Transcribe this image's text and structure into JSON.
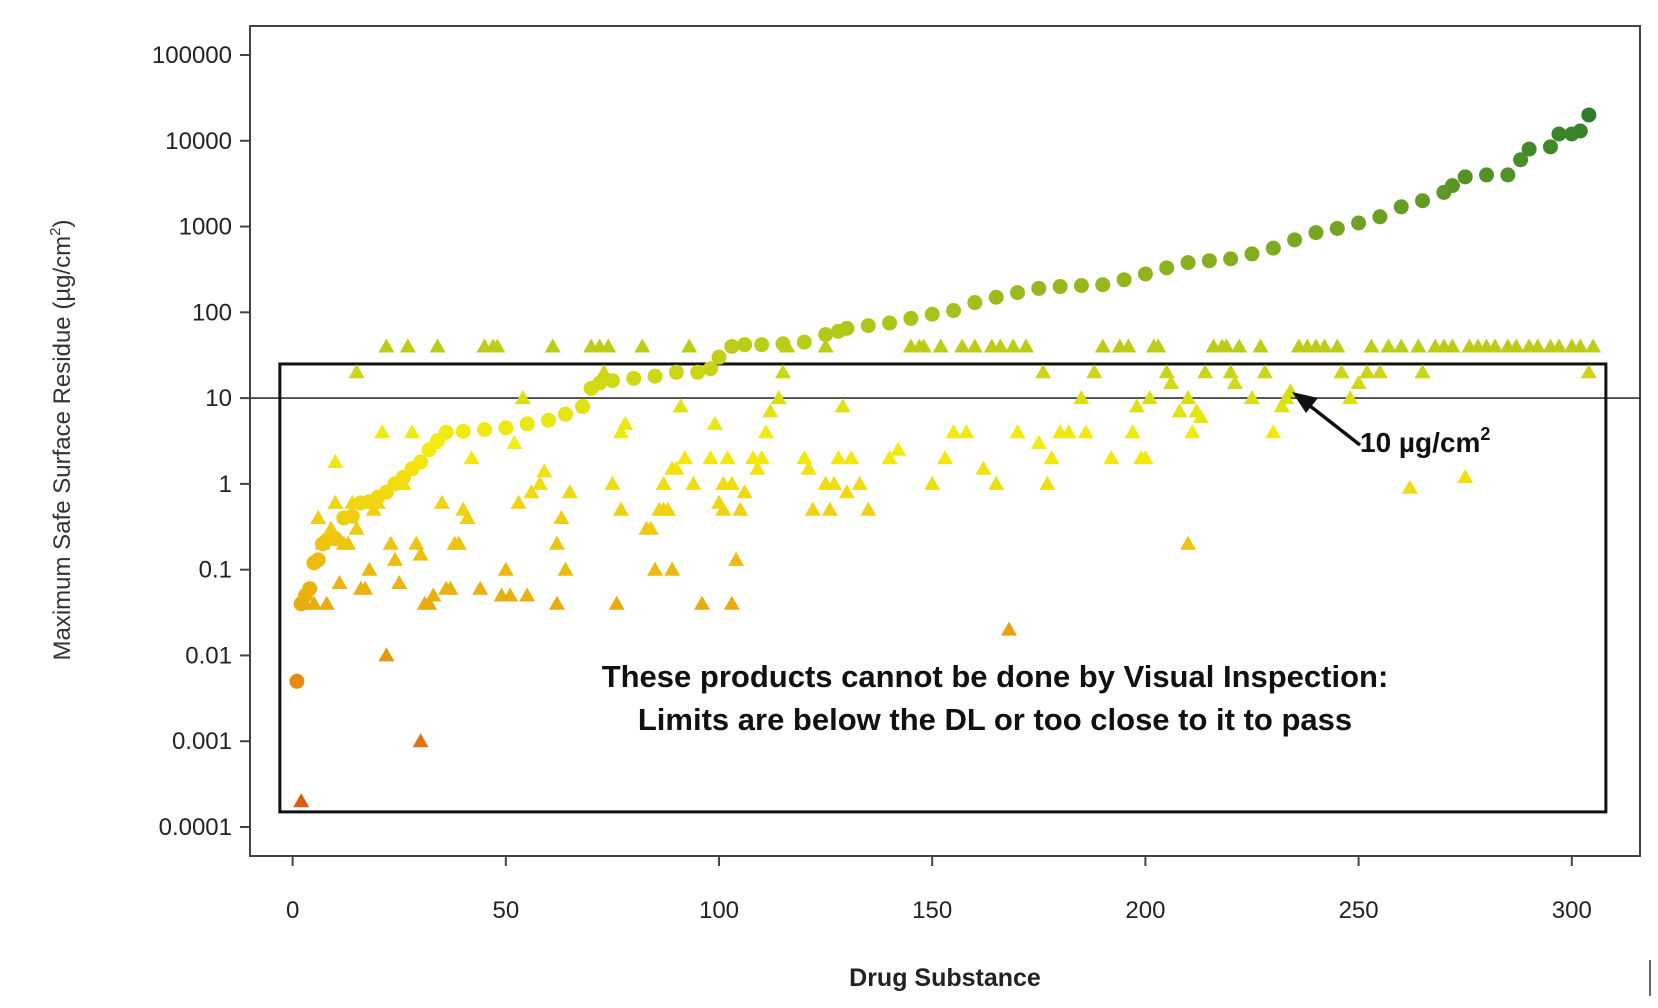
{
  "chart_data": {
    "type": "scatter",
    "xlabel": "Drug Substance",
    "ylabel": "Maximum Safe Surface Residue (µg/cm",
    "ylabel_superscript": "2",
    "ylabel_suffix": ")",
    "xlim": [
      -10,
      316
    ],
    "ylim": [
      0.0001,
      100000
    ],
    "yscale": "log",
    "x_ticks": [
      0,
      50,
      100,
      150,
      200,
      250,
      300
    ],
    "x_tick_labels": [
      "0",
      "50",
      "100",
      "150",
      "200",
      "250",
      "300"
    ],
    "y_ticks": [
      0.0001,
      0.001,
      0.01,
      0.1,
      1,
      10,
      100,
      1000,
      10000,
      100000
    ],
    "y_tick_labels": [
      "0.0001",
      "0.001",
      "0.01",
      "0.1",
      "1",
      "10",
      "100",
      "1000",
      "10000",
      "100000"
    ],
    "reference_line": {
      "y": 10,
      "label": "10 µg/cm",
      "label_superscript": "2"
    },
    "annotation_box": {
      "x_range": [
        -3,
        308
      ],
      "y_range": [
        0.00015,
        25
      ],
      "lines": [
        "These products cannot be done by Visual Inspection:",
        "Limits are below the DL or too close to it to pass"
      ]
    },
    "color_scale": {
      "low": "#dd5a10",
      "mid": "#f4ee10",
      "high": "#2f7d2c"
    },
    "series": [
      {
        "marker": "circle",
        "points": [
          [
            1,
            0.005
          ],
          [
            2,
            0.04
          ],
          [
            3,
            0.05
          ],
          [
            4,
            0.06
          ],
          [
            5,
            0.12
          ],
          [
            6,
            0.13
          ],
          [
            7,
            0.2
          ],
          [
            8,
            0.22
          ],
          [
            10,
            0.23
          ],
          [
            12,
            0.4
          ],
          [
            14,
            0.42
          ],
          [
            16,
            0.6
          ],
          [
            18,
            0.62
          ],
          [
            20,
            0.7
          ],
          [
            22,
            0.8
          ],
          [
            24,
            1
          ],
          [
            26,
            1.2
          ],
          [
            28,
            1.5
          ],
          [
            30,
            1.8
          ],
          [
            32,
            2.5
          ],
          [
            34,
            3.2
          ],
          [
            36,
            4
          ],
          [
            40,
            4.1
          ],
          [
            45,
            4.3
          ],
          [
            50,
            4.5
          ],
          [
            55,
            5
          ],
          [
            60,
            5.5
          ],
          [
            64,
            6.5
          ],
          [
            68,
            8
          ],
          [
            70,
            13
          ],
          [
            72,
            15
          ],
          [
            75,
            16
          ],
          [
            80,
            17
          ],
          [
            85,
            18
          ],
          [
            90,
            20
          ],
          [
            95,
            20
          ],
          [
            98,
            22
          ],
          [
            100,
            30
          ],
          [
            103,
            40
          ],
          [
            106,
            42
          ],
          [
            110,
            42
          ],
          [
            115,
            43
          ],
          [
            120,
            45
          ],
          [
            125,
            55
          ],
          [
            128,
            60
          ],
          [
            130,
            65
          ],
          [
            135,
            70
          ],
          [
            140,
            75
          ],
          [
            145,
            85
          ],
          [
            150,
            95
          ],
          [
            155,
            105
          ],
          [
            160,
            130
          ],
          [
            165,
            150
          ],
          [
            170,
            170
          ],
          [
            175,
            190
          ],
          [
            180,
            200
          ],
          [
            185,
            205
          ],
          [
            190,
            210
          ],
          [
            195,
            240
          ],
          [
            200,
            280
          ],
          [
            205,
            330
          ],
          [
            210,
            380
          ],
          [
            215,
            400
          ],
          [
            220,
            420
          ],
          [
            225,
            480
          ],
          [
            230,
            560
          ],
          [
            235,
            700
          ],
          [
            240,
            850
          ],
          [
            245,
            950
          ],
          [
            250,
            1100
          ],
          [
            255,
            1300
          ],
          [
            260,
            1700
          ],
          [
            265,
            2000
          ],
          [
            270,
            2500
          ],
          [
            272,
            3000
          ],
          [
            275,
            3800
          ],
          [
            280,
            4000
          ],
          [
            285,
            4000
          ],
          [
            288,
            6000
          ],
          [
            290,
            8000
          ],
          [
            295,
            8500
          ],
          [
            297,
            12000
          ],
          [
            300,
            12000
          ],
          [
            302,
            13000
          ],
          [
            304,
            20000
          ]
        ]
      },
      {
        "marker": "triangle",
        "points": [
          [
            2,
            0.0002
          ],
          [
            3,
            0.04
          ],
          [
            5,
            0.04
          ],
          [
            6,
            0.4
          ],
          [
            7,
            0.2
          ],
          [
            8,
            0.04
          ],
          [
            9,
            0.3
          ],
          [
            10,
            0.6
          ],
          [
            10,
            1.8
          ],
          [
            11,
            0.07
          ],
          [
            12,
            0.2
          ],
          [
            13,
            0.2
          ],
          [
            14,
            0.6
          ],
          [
            15,
            0.3
          ],
          [
            15,
            20
          ],
          [
            16,
            0.06
          ],
          [
            17,
            0.06
          ],
          [
            18,
            0.1
          ],
          [
            19,
            0.5
          ],
          [
            20,
            0.6
          ],
          [
            21,
            4
          ],
          [
            22,
            0.01
          ],
          [
            22,
            40
          ],
          [
            23,
            0.2
          ],
          [
            24,
            0.13
          ],
          [
            25,
            0.07
          ],
          [
            26,
            1
          ],
          [
            27,
            40
          ],
          [
            28,
            4
          ],
          [
            29,
            0.2
          ],
          [
            30,
            0.15
          ],
          [
            30,
            0.001
          ],
          [
            31,
            0.04
          ],
          [
            32,
            0.04
          ],
          [
            33,
            3
          ],
          [
            33,
            0.05
          ],
          [
            34,
            40
          ],
          [
            35,
            0.6
          ],
          [
            36,
            0.06
          ],
          [
            37,
            0.06
          ],
          [
            38,
            0.2
          ],
          [
            39,
            0.2
          ],
          [
            40,
            0.5
          ],
          [
            41,
            0.4
          ],
          [
            42,
            2
          ],
          [
            44,
            0.06
          ],
          [
            45,
            40
          ],
          [
            47,
            40
          ],
          [
            48,
            40
          ],
          [
            49,
            0.05
          ],
          [
            50,
            0.1
          ],
          [
            51,
            0.05
          ],
          [
            52,
            3
          ],
          [
            53,
            0.6
          ],
          [
            54,
            10
          ],
          [
            55,
            0.05
          ],
          [
            56,
            0.8
          ],
          [
            58,
            1
          ],
          [
            59,
            1.4
          ],
          [
            61,
            40
          ],
          [
            62,
            0.04
          ],
          [
            62,
            0.2
          ],
          [
            63,
            0.4
          ],
          [
            64,
            0.1
          ],
          [
            65,
            0.8
          ],
          [
            70,
            40
          ],
          [
            72,
            40
          ],
          [
            73,
            20
          ],
          [
            74,
            40
          ],
          [
            75,
            1
          ],
          [
            76,
            0.04
          ],
          [
            77,
            0.5
          ],
          [
            77,
            4
          ],
          [
            78,
            5
          ],
          [
            82,
            40
          ],
          [
            83,
            0.3
          ],
          [
            84,
            0.3
          ],
          [
            85,
            0.1
          ],
          [
            86,
            0.5
          ],
          [
            87,
            1
          ],
          [
            87,
            0.5
          ],
          [
            88,
            0.5
          ],
          [
            89,
            0.1
          ],
          [
            89,
            1.5
          ],
          [
            90,
            1.5
          ],
          [
            91,
            8
          ],
          [
            92,
            2
          ],
          [
            93,
            40
          ],
          [
            94,
            1
          ],
          [
            96,
            0.04
          ],
          [
            98,
            2
          ],
          [
            99,
            5
          ],
          [
            100,
            0.6
          ],
          [
            101,
            1
          ],
          [
            101,
            0.5
          ],
          [
            102,
            2
          ],
          [
            103,
            1
          ],
          [
            103,
            0.04
          ],
          [
            104,
            0.13
          ],
          [
            105,
            0.5
          ],
          [
            106,
            0.8
          ],
          [
            108,
            2
          ],
          [
            109,
            1.5
          ],
          [
            110,
            2
          ],
          [
            111,
            4
          ],
          [
            112,
            7
          ],
          [
            114,
            10
          ],
          [
            115,
            20
          ],
          [
            116,
            40
          ],
          [
            120,
            2
          ],
          [
            121,
            1.5
          ],
          [
            122,
            0.5
          ],
          [
            125,
            1
          ],
          [
            125,
            40
          ],
          [
            126,
            0.5
          ],
          [
            127,
            1
          ],
          [
            128,
            2
          ],
          [
            129,
            8
          ],
          [
            130,
            0.8
          ],
          [
            131,
            2
          ],
          [
            133,
            1
          ],
          [
            135,
            0.5
          ],
          [
            140,
            2
          ],
          [
            142,
            2.5
          ],
          [
            145,
            40
          ],
          [
            147,
            40
          ],
          [
            148,
            40
          ],
          [
            150,
            1
          ],
          [
            152,
            40
          ],
          [
            153,
            2
          ],
          [
            155,
            4
          ],
          [
            157,
            40
          ],
          [
            158,
            4
          ],
          [
            160,
            40
          ],
          [
            162,
            1.5
          ],
          [
            164,
            40
          ],
          [
            165,
            1
          ],
          [
            166,
            40
          ],
          [
            168,
            0.02
          ],
          [
            169,
            40
          ],
          [
            170,
            4
          ],
          [
            172,
            40
          ],
          [
            175,
            3
          ],
          [
            176,
            20
          ],
          [
            177,
            1
          ],
          [
            178,
            2
          ],
          [
            180,
            4
          ],
          [
            182,
            4
          ],
          [
            185,
            10
          ],
          [
            186,
            4
          ],
          [
            188,
            20
          ],
          [
            190,
            40
          ],
          [
            192,
            2
          ],
          [
            194,
            40
          ],
          [
            196,
            40
          ],
          [
            197,
            4
          ],
          [
            198,
            8
          ],
          [
            199,
            2
          ],
          [
            200,
            2
          ],
          [
            201,
            10
          ],
          [
            202,
            40
          ],
          [
            203,
            40
          ],
          [
            205,
            20
          ],
          [
            206,
            15
          ],
          [
            208,
            7
          ],
          [
            210,
            0.2
          ],
          [
            210,
            10
          ],
          [
            211,
            4
          ],
          [
            212,
            7
          ],
          [
            213,
            6
          ],
          [
            214,
            20
          ],
          [
            216,
            40
          ],
          [
            218,
            40
          ],
          [
            219,
            40
          ],
          [
            220,
            20
          ],
          [
            221,
            15
          ],
          [
            222,
            40
          ],
          [
            225,
            10
          ],
          [
            227,
            40
          ],
          [
            228,
            20
          ],
          [
            230,
            4
          ],
          [
            232,
            8
          ],
          [
            233,
            10
          ],
          [
            234,
            12
          ],
          [
            236,
            40
          ],
          [
            238,
            40
          ],
          [
            240,
            40
          ],
          [
            242,
            40
          ],
          [
            245,
            40
          ],
          [
            246,
            20
          ],
          [
            248,
            10
          ],
          [
            250,
            15
          ],
          [
            252,
            20
          ],
          [
            253,
            40
          ],
          [
            255,
            20
          ],
          [
            257,
            40
          ],
          [
            260,
            40
          ],
          [
            262,
            0.9
          ],
          [
            264,
            40
          ],
          [
            265,
            20
          ],
          [
            268,
            40
          ],
          [
            270,
            40
          ],
          [
            272,
            40
          ],
          [
            275,
            1.2
          ],
          [
            276,
            40
          ],
          [
            278,
            40
          ],
          [
            280,
            40
          ],
          [
            282,
            40
          ],
          [
            285,
            40
          ],
          [
            287,
            40
          ],
          [
            290,
            40
          ],
          [
            292,
            40
          ],
          [
            295,
            40
          ],
          [
            297,
            40
          ],
          [
            300,
            40
          ],
          [
            302,
            40
          ],
          [
            304,
            20
          ],
          [
            305,
            40
          ]
        ]
      }
    ]
  }
}
